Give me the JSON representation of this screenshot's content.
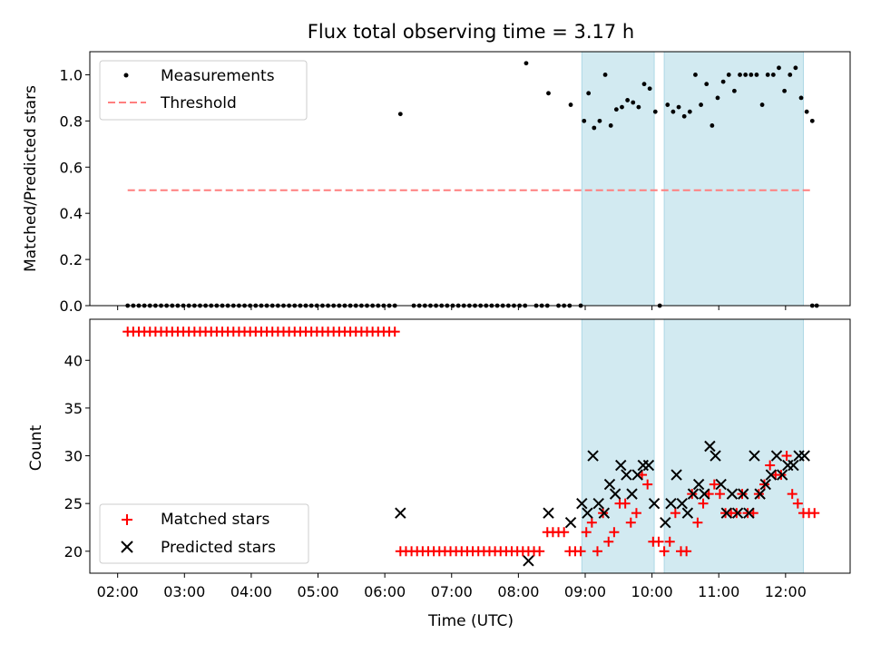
{
  "chart_data": {
    "title": "Flux total observing time = 3.17 h",
    "xlabel": "Time (UTC)",
    "x_ticks": [
      "02:00",
      "03:00",
      "04:00",
      "05:00",
      "06:00",
      "07:00",
      "08:00",
      "09:00",
      "10:00",
      "11:00",
      "12:00"
    ],
    "x_range": [
      "01:35",
      "12:58"
    ],
    "shaded_intervals": [
      [
        "08:57",
        "10:02"
      ],
      [
        "10:11",
        "12:16"
      ]
    ],
    "shade_color": "#add8e6",
    "top": {
      "type": "scatter",
      "ylabel": "Matched/Predicted stars",
      "ylim": [
        0,
        1.1
      ],
      "y_ticks": [
        "0.0",
        "0.2",
        "0.4",
        "0.6",
        "0.8",
        "1.0"
      ],
      "legend_position": "upper left",
      "series": [
        {
          "name": "Measurements",
          "color": "#000000",
          "marker": "dot",
          "x_zero": [
            "02:09",
            "02:14",
            "02:19",
            "02:24",
            "02:29",
            "02:34",
            "02:39",
            "02:44",
            "02:49",
            "02:54",
            "02:59",
            "03:04",
            "03:09",
            "03:14",
            "03:19",
            "03:24",
            "03:29",
            "03:34",
            "03:39",
            "03:44",
            "03:49",
            "03:54",
            "03:59",
            "04:04",
            "04:09",
            "04:14",
            "04:19",
            "04:24",
            "04:29",
            "04:34",
            "04:39",
            "04:44",
            "04:49",
            "04:54",
            "04:59",
            "05:04",
            "05:09",
            "05:14",
            "05:19",
            "05:24",
            "05:29",
            "05:34",
            "05:39",
            "05:44",
            "05:49",
            "05:54",
            "05:59",
            "06:04",
            "06:09",
            "06:26",
            "06:31",
            "06:36",
            "06:41",
            "06:46",
            "06:51",
            "06:56",
            "07:01",
            "07:06",
            "07:11",
            "07:16",
            "07:21",
            "07:26",
            "07:31",
            "07:36",
            "07:41",
            "07:46",
            "07:51",
            "07:56",
            "08:01",
            "08:06",
            "08:16",
            "08:21",
            "08:26",
            "08:36",
            "08:41",
            "08:46",
            "08:56",
            "10:07",
            "12:24",
            "12:28"
          ],
          "points": [
            [
              "06:14",
              0.83
            ],
            [
              "08:07",
              1.05
            ],
            [
              "08:27",
              0.92
            ],
            [
              "08:47",
              0.87
            ],
            [
              "08:59",
              0.8
            ],
            [
              "09:03",
              0.92
            ],
            [
              "09:08",
              0.77
            ],
            [
              "09:13",
              0.8
            ],
            [
              "09:18",
              1.0
            ],
            [
              "09:23",
              0.78
            ],
            [
              "09:28",
              0.85
            ],
            [
              "09:33",
              0.86
            ],
            [
              "09:38",
              0.89
            ],
            [
              "09:43",
              0.88
            ],
            [
              "09:48",
              0.86
            ],
            [
              "09:53",
              0.96
            ],
            [
              "09:58",
              0.94
            ],
            [
              "10:03",
              0.84
            ],
            [
              "10:14",
              0.87
            ],
            [
              "10:19",
              0.84
            ],
            [
              "10:24",
              0.86
            ],
            [
              "10:29",
              0.82
            ],
            [
              "10:34",
              0.84
            ],
            [
              "10:39",
              1.0
            ],
            [
              "10:44",
              0.87
            ],
            [
              "10:49",
              0.96
            ],
            [
              "10:54",
              0.78
            ],
            [
              "10:59",
              0.9
            ],
            [
              "11:04",
              0.97
            ],
            [
              "11:09",
              1.0
            ],
            [
              "11:14",
              0.93
            ],
            [
              "11:19",
              1.0
            ],
            [
              "11:24",
              1.0
            ],
            [
              "11:29",
              1.0
            ],
            [
              "11:34",
              1.0
            ],
            [
              "11:39",
              0.87
            ],
            [
              "11:44",
              1.0
            ],
            [
              "11:49",
              1.0
            ],
            [
              "11:54",
              1.03
            ],
            [
              "11:59",
              0.93
            ],
            [
              "12:04",
              1.0
            ],
            [
              "12:09",
              1.03
            ],
            [
              "12:14",
              0.9
            ],
            [
              "12:19",
              0.84
            ],
            [
              "12:24",
              0.8
            ]
          ]
        },
        {
          "name": "Threshold",
          "color": "#ff7f7f",
          "style": "dashed",
          "y": 0.5,
          "x_range": [
            "02:09",
            "12:24"
          ]
        }
      ]
    },
    "bottom": {
      "type": "scatter",
      "ylabel": "Count",
      "ylim": [
        17.7,
        44.3
      ],
      "y_ticks": [
        "20",
        "25",
        "30",
        "35",
        "40"
      ],
      "legend_position": "lower left",
      "series": [
        {
          "name": "Matched stars",
          "color": "#ff0000",
          "marker": "+",
          "flat_runs": [
            {
              "from": "02:09",
              "to": "06:09",
              "step_min": 5,
              "y": 43
            },
            {
              "from": "06:14",
              "to": "08:21",
              "step_min": 5,
              "y": 20
            }
          ],
          "points": [
            [
              "08:26",
              22
            ],
            [
              "08:31",
              22
            ],
            [
              "08:36",
              22
            ],
            [
              "08:41",
              22
            ],
            [
              "08:46",
              20
            ],
            [
              "08:51",
              20
            ],
            [
              "08:56",
              20
            ],
            [
              "09:01",
              22
            ],
            [
              "09:06",
              23
            ],
            [
              "09:11",
              20
            ],
            [
              "09:16",
              24
            ],
            [
              "09:21",
              21
            ],
            [
              "09:26",
              22
            ],
            [
              "09:31",
              25
            ],
            [
              "09:36",
              25
            ],
            [
              "09:41",
              23
            ],
            [
              "09:46",
              24
            ],
            [
              "09:51",
              28
            ],
            [
              "09:56",
              27
            ],
            [
              "10:01",
              21
            ],
            [
              "10:06",
              21
            ],
            [
              "10:11",
              20
            ],
            [
              "10:16",
              21
            ],
            [
              "10:21",
              24
            ],
            [
              "10:26",
              20
            ],
            [
              "10:31",
              20
            ],
            [
              "10:36",
              26
            ],
            [
              "10:41",
              23
            ],
            [
              "10:46",
              25
            ],
            [
              "10:51",
              26
            ],
            [
              "10:56",
              27
            ],
            [
              "11:01",
              26
            ],
            [
              "11:06",
              24
            ],
            [
              "11:11",
              24
            ],
            [
              "11:16",
              24
            ],
            [
              "11:21",
              26
            ],
            [
              "11:26",
              24
            ],
            [
              "11:31",
              24
            ],
            [
              "11:36",
              26
            ],
            [
              "11:41",
              27
            ],
            [
              "11:46",
              29
            ],
            [
              "11:51",
              28
            ],
            [
              "11:56",
              28
            ],
            [
              "12:01",
              30
            ],
            [
              "12:06",
              26
            ],
            [
              "12:11",
              25
            ],
            [
              "12:16",
              24
            ],
            [
              "12:21",
              24
            ],
            [
              "12:26",
              24
            ]
          ]
        },
        {
          "name": "Predicted stars",
          "color": "#000000",
          "marker": "x",
          "points": [
            [
              "06:14",
              24
            ],
            [
              "08:09",
              19
            ],
            [
              "08:27",
              24
            ],
            [
              "08:47",
              23
            ],
            [
              "08:57",
              25
            ],
            [
              "09:02",
              24
            ],
            [
              "09:07",
              30
            ],
            [
              "09:12",
              25
            ],
            [
              "09:17",
              24
            ],
            [
              "09:22",
              27
            ],
            [
              "09:27",
              26
            ],
            [
              "09:32",
              29
            ],
            [
              "09:37",
              28
            ],
            [
              "09:42",
              26
            ],
            [
              "09:47",
              28
            ],
            [
              "09:52",
              29
            ],
            [
              "09:57",
              29
            ],
            [
              "10:02",
              25
            ],
            [
              "10:12",
              23
            ],
            [
              "10:17",
              25
            ],
            [
              "10:22",
              28
            ],
            [
              "10:27",
              25
            ],
            [
              "10:32",
              24
            ],
            [
              "10:37",
              26
            ],
            [
              "10:42",
              27
            ],
            [
              "10:47",
              26
            ],
            [
              "10:52",
              31
            ],
            [
              "10:57",
              30
            ],
            [
              "11:02",
              27
            ],
            [
              "11:07",
              24
            ],
            [
              "11:12",
              26
            ],
            [
              "11:17",
              24
            ],
            [
              "11:22",
              26
            ],
            [
              "11:27",
              24
            ],
            [
              "11:32",
              30
            ],
            [
              "11:37",
              26
            ],
            [
              "11:42",
              27
            ],
            [
              "11:47",
              28
            ],
            [
              "11:52",
              30
            ],
            [
              "11:57",
              28
            ],
            [
              "12:02",
              29
            ],
            [
              "12:07",
              29
            ],
            [
              "12:12",
              30
            ],
            [
              "12:17",
              30
            ]
          ]
        }
      ]
    }
  }
}
